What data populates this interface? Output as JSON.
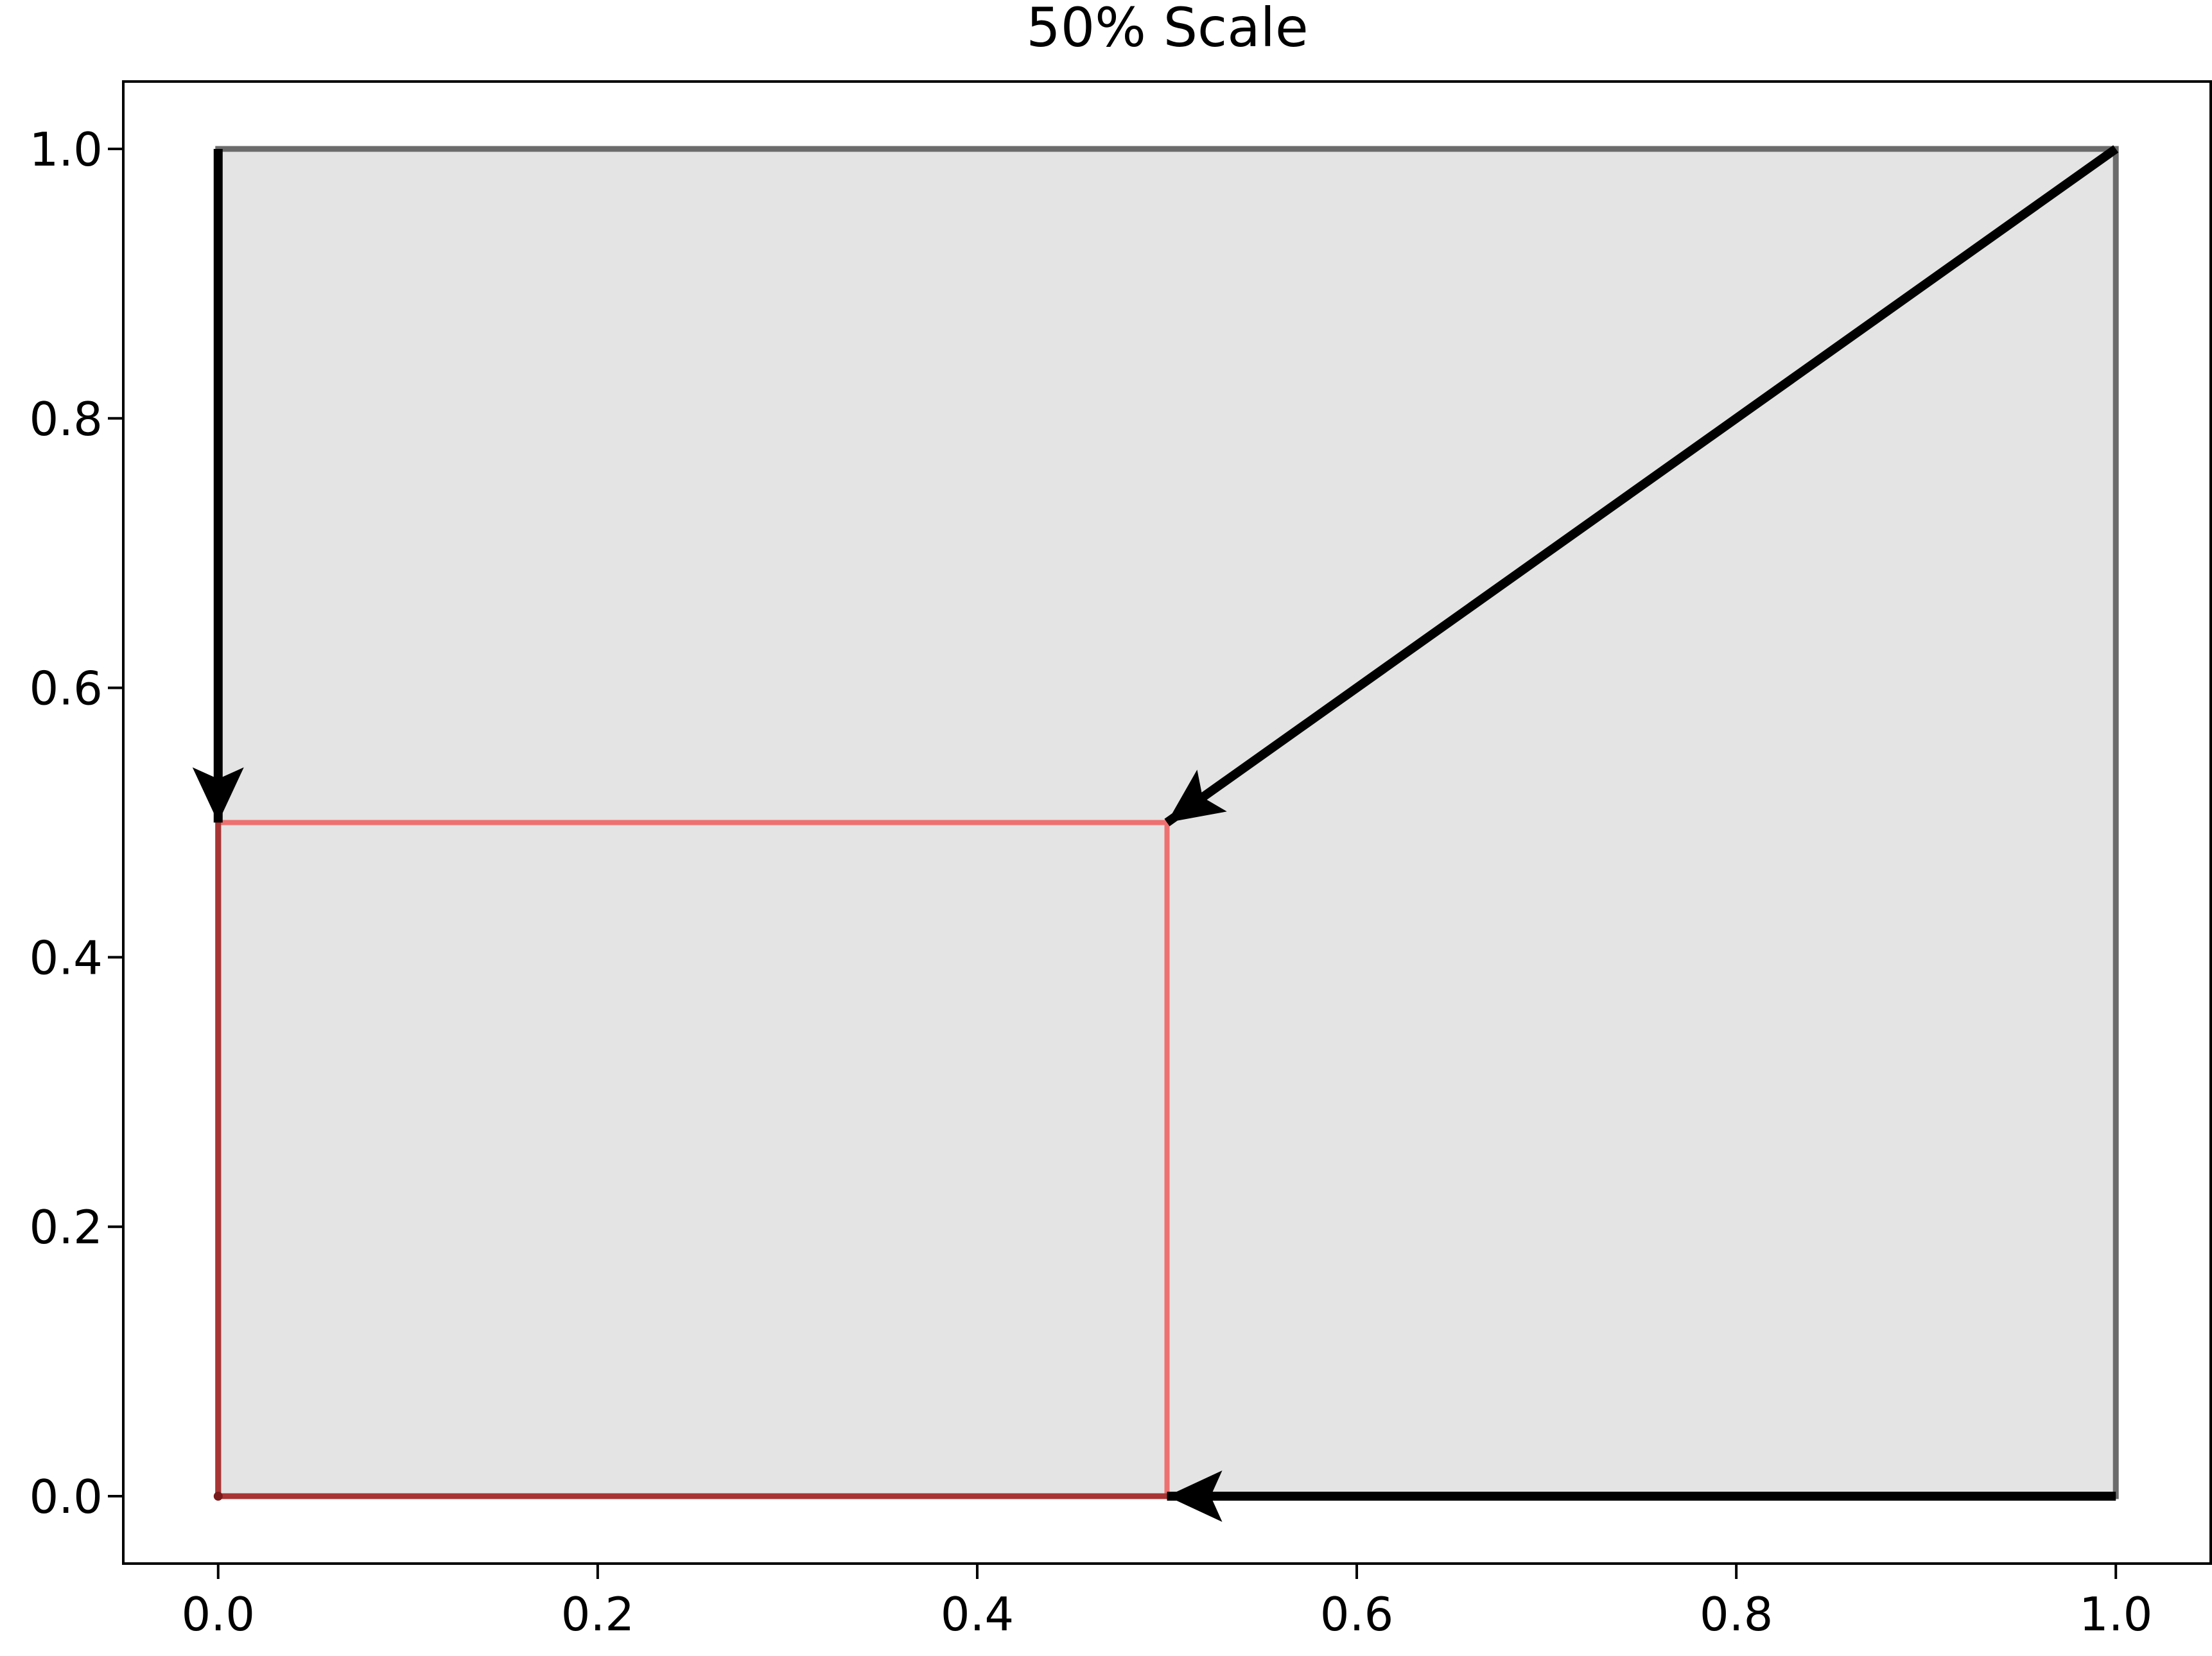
{
  "chart_data": {
    "type": "line",
    "title": "50% Scale",
    "xlabel": "",
    "ylabel": "",
    "xlim": [
      -0.05,
      1.05
    ],
    "ylim": [
      -0.05,
      1.05
    ],
    "x_ticks": [
      "0.0",
      "0.2",
      "0.4",
      "0.6",
      "0.8",
      "1.0"
    ],
    "y_ticks": [
      "0.0",
      "0.2",
      "0.4",
      "0.6",
      "0.8",
      "1.0"
    ],
    "grid": false,
    "legend": "none",
    "original_rectangle": {
      "corners": [
        [
          0,
          0
        ],
        [
          1,
          0
        ],
        [
          1,
          1
        ],
        [
          0,
          1
        ]
      ],
      "fill_color": "#e4e4e4",
      "edge_color": "#6b6b6b"
    },
    "scaled_rectangle": {
      "scale": 0.5,
      "corners": [
        [
          0,
          0
        ],
        [
          0.5,
          0
        ],
        [
          0.5,
          0.5
        ],
        [
          0,
          0.5
        ]
      ],
      "edge_color": "#ee7070",
      "edge_overlap_color": "#a83434"
    },
    "scaling_center": [
      0,
      0
    ],
    "arrows": [
      {
        "from": [
          0,
          1
        ],
        "to": [
          0,
          0.5
        ]
      },
      {
        "from": [
          1,
          1
        ],
        "to": [
          0.5,
          0.5
        ]
      },
      {
        "from": [
          1,
          0
        ],
        "to": [
          0.5,
          0
        ]
      }
    ],
    "colors": {
      "arrow": "#000000",
      "axes": "#000000",
      "background": "#ffffff"
    }
  }
}
